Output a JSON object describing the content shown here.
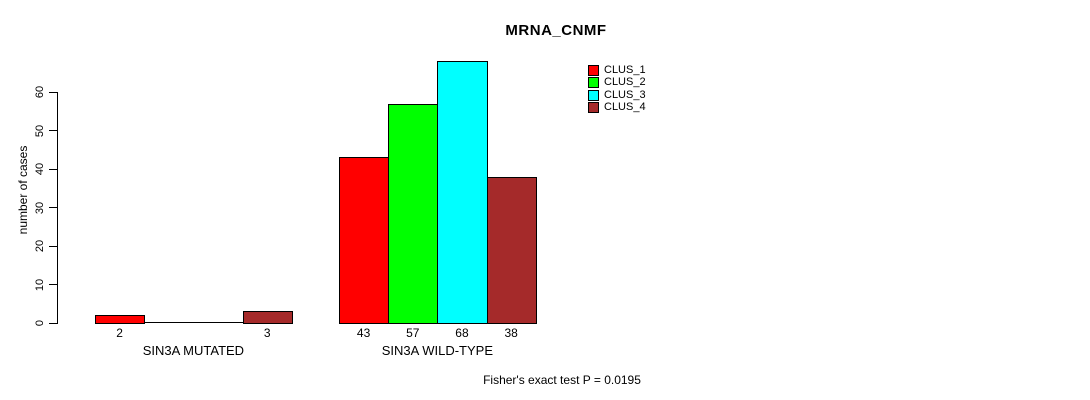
{
  "title": "MRNA_CNMF",
  "footer_note": "Fisher's exact test P = 0.0195",
  "legend": [
    {
      "label": "CLUS_1",
      "color": "#ff0000"
    },
    {
      "label": "CLUS_2",
      "color": "#00ff00"
    },
    {
      "label": "CLUS_3",
      "color": "#00ffff"
    },
    {
      "label": "CLUS_4",
      "color": "#a52a2a"
    }
  ],
  "chart_data": {
    "type": "bar",
    "title": "MRNA_CNMF",
    "xlabel": "",
    "ylabel": "number of cases",
    "ylim": [
      0,
      60
    ],
    "yticks": [
      0,
      10,
      20,
      30,
      40,
      50,
      60
    ],
    "grid": false,
    "legend_position": "top-right",
    "series": [
      "CLUS_1",
      "CLUS_2",
      "CLUS_3",
      "CLUS_4"
    ],
    "colors": [
      "#ff0000",
      "#00ff00",
      "#00ffff",
      "#a52a2a"
    ],
    "groups": [
      {
        "label": "SIN3A MUTATED",
        "values": [
          2,
          0,
          0,
          3
        ]
      },
      {
        "label": "SIN3A WILD-TYPE",
        "values": [
          43,
          57,
          68,
          38
        ]
      }
    ],
    "annotation": "Fisher's exact test P = 0.0195"
  }
}
